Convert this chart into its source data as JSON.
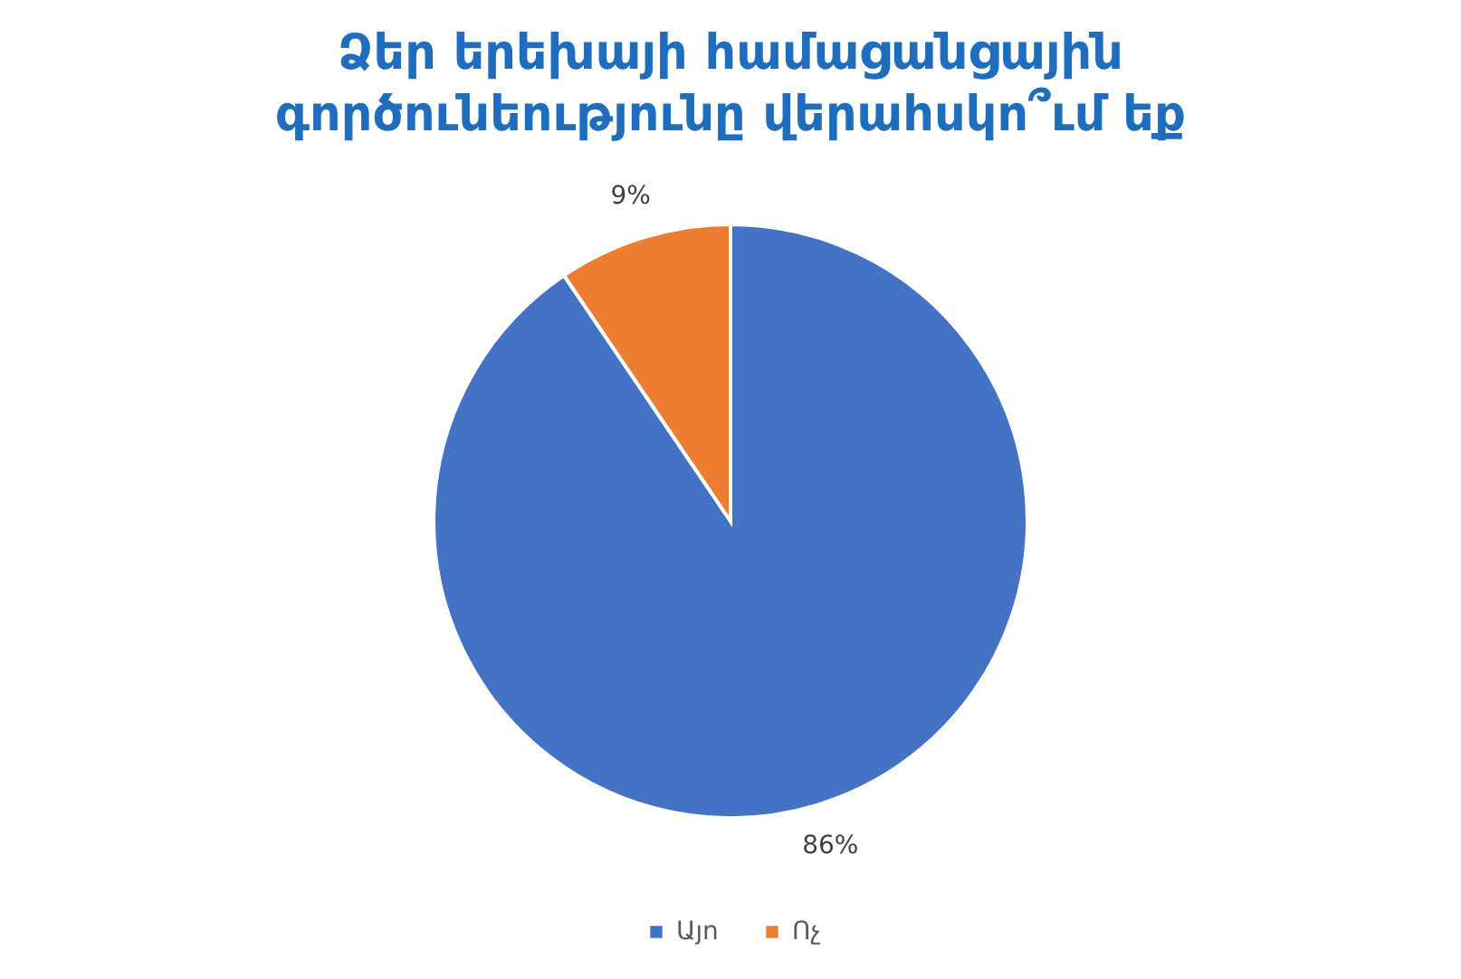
{
  "chart_data": {
    "type": "pie",
    "title": "Ձեր երեխայի համացանցային\nգործունեությունը վերահսկո՞ւմ եք",
    "categories": [
      "Այո",
      "Ոչ"
    ],
    "values": [
      86,
      9
    ],
    "colors": [
      "#4472c4",
      "#ed7d31"
    ],
    "value_labels": [
      "86%",
      "9%"
    ],
    "legend": "bottom"
  }
}
